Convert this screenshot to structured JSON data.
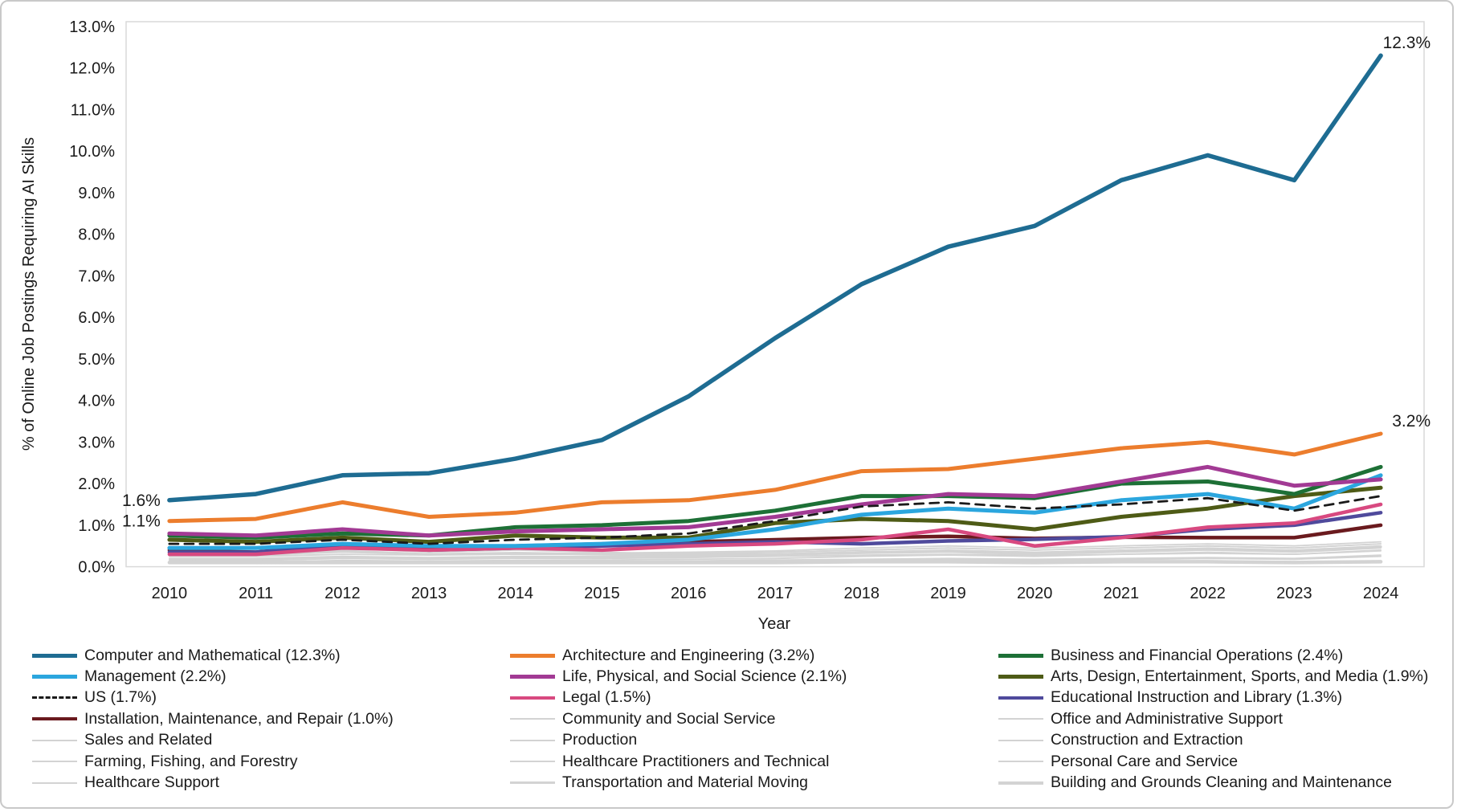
{
  "figure": {
    "background": "#ffffff",
    "outer_border_color": "#c9c9c9",
    "plot_border_color": "#d9d9d9",
    "text_color": "#1a1a1a",
    "gray_series_color": "#d3d3d3"
  },
  "chart_data": {
    "type": "line",
    "title": "",
    "xlabel": "Year",
    "ylabel": "% of Online Job Postings Requiring AI Skills",
    "x": [
      2010,
      2011,
      2012,
      2013,
      2014,
      2015,
      2016,
      2017,
      2018,
      2019,
      2020,
      2021,
      2022,
      2023,
      2024
    ],
    "ylim": [
      0,
      13
    ],
    "ytick_labels": [
      "0.0%",
      "1.0%",
      "2.0%",
      "3.0%",
      "4.0%",
      "5.0%",
      "6.0%",
      "7.0%",
      "8.0%",
      "9.0%",
      "10.0%",
      "11.0%",
      "12.0%",
      "13.0%"
    ],
    "grid": false,
    "legend_position": "bottom",
    "legend_columns": 3,
    "series": [
      {
        "name": "Computer and Mathematical",
        "legend_label": "Computer and Mathematical (12.3%)",
        "slug": "computer-and-mathematical",
        "color": "#1E6C92",
        "width": 5.5,
        "dash": false,
        "values": [
          1.6,
          1.75,
          2.2,
          2.25,
          2.6,
          3.05,
          4.1,
          5.5,
          6.8,
          7.7,
          8.2,
          9.3,
          9.9,
          9.3,
          12.3
        ]
      },
      {
        "name": "Architecture and Engineering",
        "legend_label": "Architecture and Engineering (3.2%)",
        "slug": "architecture-and-engineering",
        "color": "#EC7D2D",
        "width": 5,
        "dash": false,
        "values": [
          1.1,
          1.15,
          1.55,
          1.2,
          1.3,
          1.55,
          1.6,
          1.85,
          2.3,
          2.35,
          2.6,
          2.85,
          3.0,
          2.7,
          3.2
        ]
      },
      {
        "name": "Business and Financial Operations",
        "legend_label": "Business and Financial Operations (2.4%)",
        "slug": "business-and-financial-operations",
        "color": "#1D7036",
        "width": 5,
        "dash": false,
        "values": [
          0.75,
          0.7,
          0.8,
          0.75,
          0.95,
          1.0,
          1.1,
          1.35,
          1.7,
          1.7,
          1.65,
          2.0,
          2.05,
          1.75,
          2.4
        ]
      },
      {
        "name": "Management",
        "legend_label": "Management (2.2%)",
        "slug": "management",
        "color": "#2BA6DE",
        "width": 5,
        "dash": false,
        "values": [
          0.45,
          0.45,
          0.55,
          0.5,
          0.5,
          0.55,
          0.65,
          0.9,
          1.25,
          1.4,
          1.3,
          1.6,
          1.75,
          1.4,
          2.2
        ]
      },
      {
        "name": "Life, Physical, and Social Science",
        "legend_label": "Life, Physical, and Social Science (2.1%)",
        "slug": "life-physical-and-social-science",
        "color": "#A23A94",
        "width": 5,
        "dash": false,
        "values": [
          0.8,
          0.75,
          0.9,
          0.75,
          0.85,
          0.9,
          0.95,
          1.2,
          1.5,
          1.75,
          1.7,
          2.05,
          2.4,
          1.95,
          2.1
        ]
      },
      {
        "name": "Arts, Design, Entertainment, Sports, and Media",
        "legend_label": "Arts, Design, Entertainment, Sports, and Media (1.9%)",
        "slug": "arts-design-entertainment-sports-and-media",
        "color": "#4E5B16",
        "width": 5,
        "dash": false,
        "values": [
          0.65,
          0.6,
          0.7,
          0.6,
          0.75,
          0.7,
          0.7,
          1.05,
          1.15,
          1.1,
          0.9,
          1.2,
          1.4,
          1.7,
          1.9
        ]
      },
      {
        "name": "US",
        "legend_label": "US (1.7%)",
        "slug": "us",
        "color": "#1A1A1A",
        "width": 2.8,
        "dash": true,
        "values": [
          0.55,
          0.55,
          0.65,
          0.55,
          0.65,
          0.7,
          0.8,
          1.1,
          1.45,
          1.55,
          1.4,
          1.5,
          1.65,
          1.35,
          1.7
        ]
      },
      {
        "name": "Legal",
        "legend_label": "Legal (1.5%)",
        "slug": "legal",
        "color": "#D84980",
        "width": 4.5,
        "dash": false,
        "values": [
          0.3,
          0.3,
          0.45,
          0.4,
          0.45,
          0.4,
          0.5,
          0.55,
          0.65,
          0.9,
          0.5,
          0.7,
          0.95,
          1.05,
          1.5
        ]
      },
      {
        "name": "Educational Instruction and Library",
        "legend_label": "Educational Instruction and Library (1.3%)",
        "slug": "educational-instruction-and-library",
        "color": "#4F4A9C",
        "width": 4.5,
        "dash": false,
        "values": [
          0.35,
          0.35,
          0.5,
          0.4,
          0.45,
          0.5,
          0.55,
          0.6,
          0.55,
          0.62,
          0.66,
          0.72,
          0.9,
          1.0,
          1.3
        ]
      },
      {
        "name": "Installation, Maintenance, and Repair",
        "legend_label": "Installation, Maintenance, and Repair (1.0%)",
        "slug": "installation-maintenance-and-repair",
        "color": "#6A1A1E",
        "width": 4.5,
        "dash": false,
        "values": [
          0.4,
          0.35,
          0.55,
          0.45,
          0.5,
          0.55,
          0.6,
          0.65,
          0.7,
          0.73,
          0.68,
          0.71,
          0.7,
          0.7,
          1.0
        ]
      },
      {
        "name": "Community and Social Service",
        "legend_label": "Community and Social Service",
        "slug": "community-and-social-service",
        "color": "#d3d3d3",
        "width": 1.8,
        "dash": false,
        "values": [
          0.25,
          0.25,
          0.3,
          0.28,
          0.3,
          0.3,
          0.32,
          0.35,
          0.4,
          0.45,
          0.4,
          0.45,
          0.5,
          0.45,
          0.55
        ]
      },
      {
        "name": "Office and Administrative Support",
        "legend_label": "Office and Administrative Support",
        "slug": "office-and-administrative-support",
        "color": "#d3d3d3",
        "width": 1.8,
        "dash": false,
        "values": [
          0.3,
          0.28,
          0.35,
          0.3,
          0.32,
          0.33,
          0.35,
          0.38,
          0.45,
          0.5,
          0.45,
          0.5,
          0.55,
          0.5,
          0.6
        ]
      },
      {
        "name": "Sales and Related",
        "legend_label": "Sales and Related",
        "slug": "sales-and-related",
        "color": "#d3d3d3",
        "width": 1.8,
        "dash": false,
        "values": [
          0.2,
          0.2,
          0.25,
          0.22,
          0.25,
          0.25,
          0.28,
          0.3,
          0.35,
          0.4,
          0.35,
          0.4,
          0.45,
          0.4,
          0.5
        ]
      },
      {
        "name": "Production",
        "legend_label": "Production",
        "slug": "production",
        "color": "#d3d3d3",
        "width": 1.8,
        "dash": false,
        "values": [
          0.18,
          0.17,
          0.22,
          0.2,
          0.22,
          0.22,
          0.25,
          0.28,
          0.32,
          0.35,
          0.3,
          0.35,
          0.4,
          0.35,
          0.45
        ]
      },
      {
        "name": "Construction and Extraction",
        "legend_label": "Construction and Extraction",
        "slug": "construction-and-extraction",
        "color": "#d3d3d3",
        "width": 1.8,
        "dash": false,
        "values": [
          0.15,
          0.15,
          0.2,
          0.18,
          0.2,
          0.2,
          0.22,
          0.25,
          0.28,
          0.3,
          0.28,
          0.3,
          0.35,
          0.3,
          0.4
        ]
      },
      {
        "name": "Farming, Fishing, and Forestry",
        "legend_label": "Farming, Fishing, and Forestry",
        "slug": "farming-fishing-and-forestry",
        "color": "#d3d3d3",
        "width": 1.8,
        "dash": false,
        "values": [
          0.35,
          0.3,
          0.45,
          0.35,
          0.4,
          0.35,
          0.3,
          0.35,
          0.4,
          0.45,
          0.4,
          0.45,
          0.5,
          0.45,
          0.55
        ]
      },
      {
        "name": "Healthcare Practitioners and Technical",
        "legend_label": "Healthcare Practitioners and Technical",
        "slug": "healthcare-practitioners-and-technical",
        "color": "#d3d3d3",
        "width": 1.8,
        "dash": false,
        "values": [
          0.12,
          0.12,
          0.15,
          0.14,
          0.15,
          0.16,
          0.18,
          0.2,
          0.25,
          0.28,
          0.25,
          0.3,
          0.32,
          0.3,
          0.38
        ]
      },
      {
        "name": "Personal Care and Service",
        "legend_label": "Personal Care and Service",
        "slug": "personal-care-and-service",
        "color": "#d3d3d3",
        "width": 1.8,
        "dash": false,
        "values": [
          0.1,
          0.1,
          0.12,
          0.11,
          0.12,
          0.13,
          0.14,
          0.16,
          0.18,
          0.2,
          0.18,
          0.2,
          0.22,
          0.2,
          0.28
        ]
      },
      {
        "name": "Healthcare Support",
        "legend_label": "Healthcare Support",
        "slug": "healthcare-support",
        "color": "#d3d3d3",
        "width": 1.8,
        "dash": false,
        "values": [
          0.08,
          0.08,
          0.1,
          0.09,
          0.1,
          0.1,
          0.12,
          0.13,
          0.15,
          0.17,
          0.15,
          0.17,
          0.2,
          0.18,
          0.25
        ]
      },
      {
        "name": "Transportation and Material Moving",
        "legend_label": "Transportation and Material Moving",
        "slug": "transportation-and-material-moving",
        "color": "#d3d3d3",
        "width": 3,
        "dash": false,
        "values": [
          0.3,
          0.28,
          0.38,
          0.3,
          0.33,
          0.3,
          0.28,
          0.3,
          0.35,
          0.38,
          0.33,
          0.38,
          0.42,
          0.38,
          0.48
        ]
      },
      {
        "name": "Building and Grounds Cleaning and Maintenance",
        "legend_label": "Building and Grounds Cleaning and Maintenance",
        "slug": "building-and-grounds-cleaning-and-maintenance",
        "color": "#d3d3d3",
        "width": 4.5,
        "dash": false,
        "values": [
          0.1,
          0.1,
          0.1,
          0.1,
          0.1,
          0.1,
          0.1,
          0.1,
          0.12,
          0.12,
          0.1,
          0.12,
          0.12,
          0.1,
          0.12
        ]
      }
    ],
    "paint_order": [
      20,
      19,
      18,
      17,
      16,
      15,
      14,
      13,
      12,
      11,
      10,
      9,
      8,
      7,
      5,
      3,
      2,
      4,
      6,
      1,
      0
    ],
    "annotations": [
      {
        "text": "1.6%",
        "series_index": 0,
        "year_index": 0,
        "placement": "left"
      },
      {
        "text": "1.1%",
        "series_index": 1,
        "year_index": 0,
        "placement": "left"
      },
      {
        "text": "12.3%",
        "series_index": 0,
        "year_index": 14,
        "placement": "above-end"
      },
      {
        "text": "3.2%",
        "series_index": 1,
        "year_index": 14,
        "placement": "above-end"
      }
    ]
  }
}
